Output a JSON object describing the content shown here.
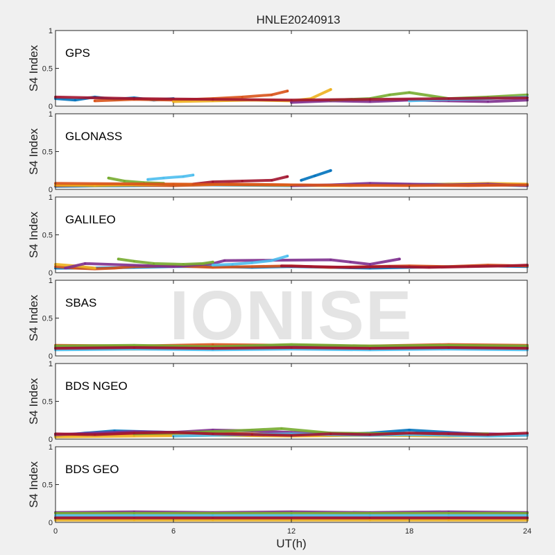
{
  "title": "HNLE20240913",
  "xlabel": "UT(h)",
  "watermark": "IONISE",
  "colors": {
    "background": "#f0f0f0",
    "axes_bg": "#ffffff",
    "palette": [
      "#0072bd",
      "#d95319",
      "#edb120",
      "#7e2f8e",
      "#77ac30",
      "#4dbeee",
      "#a2142f"
    ]
  },
  "chart_data": [
    {
      "type": "scatter",
      "panel_label": "GPS",
      "ylabel": "S4 Index",
      "xlim": [
        0,
        24
      ],
      "ylim": [
        0,
        1
      ],
      "yticks": [
        "0",
        "0.5",
        "1"
      ],
      "xticks": [],
      "series": [
        {
          "x": [
            0,
            1,
            2,
            3,
            4,
            5,
            6
          ],
          "y": [
            0.1,
            0.08,
            0.12,
            0.09,
            0.11,
            0.08,
            0.1
          ]
        },
        {
          "x": [
            2,
            4,
            6,
            8,
            9.5,
            11,
            11.8
          ],
          "y": [
            0.07,
            0.09,
            0.08,
            0.1,
            0.12,
            0.15,
            0.2
          ]
        },
        {
          "x": [
            6,
            8,
            10,
            12,
            13,
            14
          ],
          "y": [
            0.06,
            0.07,
            0.08,
            0.07,
            0.1,
            0.22
          ]
        },
        {
          "x": [
            12,
            14,
            16,
            18,
            20,
            22,
            24
          ],
          "y": [
            0.05,
            0.07,
            0.06,
            0.08,
            0.07,
            0.06,
            0.08
          ]
        },
        {
          "x": [
            14,
            16,
            17,
            18,
            20,
            22,
            24
          ],
          "y": [
            0.08,
            0.1,
            0.15,
            0.18,
            0.1,
            0.12,
            0.15
          ]
        },
        {
          "x": [
            18,
            20,
            22,
            24
          ],
          "y": [
            0.07,
            0.09,
            0.1,
            0.12
          ]
        },
        {
          "x": [
            0,
            4,
            8,
            12,
            16,
            20,
            24
          ],
          "y": [
            0.12,
            0.1,
            0.09,
            0.08,
            0.09,
            0.1,
            0.11
          ]
        }
      ]
    },
    {
      "type": "scatter",
      "panel_label": "GLONASS",
      "ylabel": "S4 Index",
      "xlim": [
        0,
        24
      ],
      "ylim": [
        0,
        1
      ],
      "yticks": [
        "0",
        "0.5",
        "1"
      ],
      "xticks": [],
      "series": [
        {
          "x": [
            0,
            4,
            8,
            12,
            16,
            20,
            24
          ],
          "y": [
            0.04,
            0.05,
            0.06,
            0.05,
            0.06,
            0.07,
            0.05
          ]
        },
        {
          "x": [
            0,
            3,
            6,
            9,
            12,
            15,
            18,
            21,
            24
          ],
          "y": [
            0.05,
            0.06,
            0.05,
            0.07,
            0.06,
            0.05,
            0.06,
            0.05,
            0.06
          ]
        },
        {
          "x": [
            0,
            2,
            6,
            10,
            14,
            18,
            22,
            24
          ],
          "y": [
            0.06,
            0.05,
            0.07,
            0.06,
            0.05,
            0.06,
            0.08,
            0.07
          ]
        },
        {
          "x": [
            12,
            14,
            16,
            18,
            20,
            22,
            24
          ],
          "y": [
            0.05,
            0.06,
            0.08,
            0.07,
            0.06,
            0.07,
            0.05
          ]
        },
        {
          "x": [
            2.7,
            3.5,
            4.5,
            5.5
          ],
          "y": [
            0.15,
            0.11,
            0.09,
            0.08
          ]
        },
        {
          "x": [
            4.7,
            5.5,
            6.5,
            7
          ],
          "y": [
            0.13,
            0.15,
            0.17,
            0.19
          ]
        },
        {
          "x": [
            7,
            8,
            9.5,
            11,
            11.8
          ],
          "y": [
            0.07,
            0.1,
            0.11,
            0.12,
            0.17
          ]
        },
        {
          "x": [
            12.5,
            13.2,
            14
          ],
          "y": [
            0.12,
            0.18,
            0.25
          ]
        },
        {
          "x": [
            0,
            6,
            12,
            18,
            24
          ],
          "y": [
            0.08,
            0.07,
            0.06,
            0.05,
            0.06
          ]
        }
      ]
    },
    {
      "type": "scatter",
      "panel_label": "GALILEO",
      "ylabel": "S4 Index",
      "xlim": [
        0,
        24
      ],
      "ylim": [
        0,
        1
      ],
      "yticks": [
        "0",
        "0.5",
        "1"
      ],
      "xticks": [],
      "series": [
        {
          "x": [
            0,
            2,
            4,
            6,
            8,
            10,
            12,
            14,
            16,
            18,
            20,
            22,
            24
          ],
          "y": [
            0.06,
            0.06,
            0.07,
            0.08,
            0.08,
            0.07,
            0.08,
            0.07,
            0.06,
            0.07,
            0.08,
            0.09,
            0.08
          ]
        },
        {
          "x": [
            0,
            1,
            2,
            3,
            4,
            6,
            8,
            10,
            12,
            14,
            16,
            18,
            20,
            22,
            24
          ],
          "y": [
            0.08,
            0.06,
            0.05,
            0.06,
            0.08,
            0.09,
            0.07,
            0.08,
            0.09,
            0.07,
            0.08,
            0.09,
            0.08,
            0.1,
            0.09
          ]
        },
        {
          "x": [
            0,
            1,
            2
          ],
          "y": [
            0.11,
            0.09,
            0.06
          ]
        },
        {
          "x": [
            0.5,
            1.5,
            6,
            8,
            8.6,
            14,
            15,
            16,
            17.5
          ],
          "y": [
            0.06,
            0.12,
            0.08,
            0.12,
            0.16,
            0.17,
            0.14,
            0.11,
            0.18
          ]
        },
        {
          "x": [
            3.2,
            4,
            5,
            6.5,
            7.5,
            8
          ],
          "y": [
            0.18,
            0.15,
            0.12,
            0.11,
            0.12,
            0.14
          ]
        },
        {
          "x": [
            8,
            9,
            10,
            11,
            11.8
          ],
          "y": [
            0.1,
            0.11,
            0.13,
            0.16,
            0.22
          ]
        },
        {
          "x": [
            11.5,
            13,
            15,
            17,
            19,
            21,
            23,
            24
          ],
          "y": [
            0.09,
            0.08,
            0.07,
            0.08,
            0.07,
            0.08,
            0.09,
            0.1
          ]
        }
      ]
    },
    {
      "type": "scatter",
      "panel_label": "SBAS",
      "ylabel": "S4 Index",
      "xlim": [
        0,
        24
      ],
      "ylim": [
        0,
        1
      ],
      "yticks": [
        "0",
        "0.5",
        "1"
      ],
      "xticks": [],
      "series": [
        {
          "x": [
            0,
            4,
            8,
            12,
            16,
            20,
            24
          ],
          "y": [
            0.11,
            0.12,
            0.1,
            0.13,
            0.11,
            0.12,
            0.11
          ]
        },
        {
          "x": [
            0,
            4,
            8,
            12,
            16,
            20,
            24
          ],
          "y": [
            0.14,
            0.13,
            0.15,
            0.14,
            0.13,
            0.15,
            0.14
          ]
        },
        {
          "x": [
            0,
            4,
            8,
            12,
            16,
            20,
            24
          ],
          "y": [
            0.1,
            0.09,
            0.11,
            0.1,
            0.12,
            0.1,
            0.11
          ]
        },
        {
          "x": [
            0,
            4,
            8,
            12,
            16,
            20,
            24
          ],
          "y": [
            0.12,
            0.11,
            0.12,
            0.13,
            0.12,
            0.11,
            0.12
          ]
        },
        {
          "x": [
            0,
            4,
            8,
            12,
            16,
            20,
            24
          ],
          "y": [
            0.13,
            0.14,
            0.12,
            0.15,
            0.13,
            0.14,
            0.13
          ]
        },
        {
          "x": [
            0,
            4,
            8,
            12,
            16,
            20,
            24
          ],
          "y": [
            0.08,
            0.09,
            0.08,
            0.09,
            0.08,
            0.09,
            0.08
          ]
        },
        {
          "x": [
            0,
            4,
            8,
            12,
            16,
            20,
            24
          ],
          "y": [
            0.1,
            0.11,
            0.1,
            0.11,
            0.1,
            0.11,
            0.1
          ]
        }
      ]
    },
    {
      "type": "scatter",
      "panel_label": "BDS NGEO",
      "ylabel": "S4 Index",
      "xlim": [
        0,
        24
      ],
      "ylim": [
        0,
        1
      ],
      "yticks": [
        "0",
        "0.5",
        "1"
      ],
      "xticks": [],
      "series": [
        {
          "x": [
            0,
            1.5,
            3,
            6,
            10,
            14,
            16,
            18,
            20,
            22,
            24
          ],
          "y": [
            0.04,
            0.08,
            0.11,
            0.09,
            0.07,
            0.06,
            0.08,
            0.12,
            0.09,
            0.06,
            0.05
          ]
        },
        {
          "x": [
            0,
            2,
            4,
            6,
            8,
            10,
            12,
            14,
            16,
            18,
            20,
            22,
            24
          ],
          "y": [
            0.05,
            0.06,
            0.07,
            0.06,
            0.08,
            0.07,
            0.06,
            0.05,
            0.07,
            0.06,
            0.05,
            0.06,
            0.05
          ]
        },
        {
          "x": [
            0,
            4,
            8,
            12,
            16,
            20,
            24
          ],
          "y": [
            0.03,
            0.04,
            0.05,
            0.04,
            0.05,
            0.04,
            0.05
          ]
        },
        {
          "x": [
            0,
            2,
            4,
            6,
            8,
            10,
            12,
            16,
            20,
            24
          ],
          "y": [
            0.06,
            0.08,
            0.1,
            0.09,
            0.12,
            0.11,
            0.09,
            0.07,
            0.08,
            0.06
          ]
        },
        {
          "x": [
            4,
            6,
            8,
            10,
            11.5,
            14,
            18,
            20,
            22
          ],
          "y": [
            0.07,
            0.08,
            0.1,
            0.12,
            0.14,
            0.08,
            0.07,
            0.06,
            0.07
          ]
        },
        {
          "x": [
            6,
            8,
            10,
            12,
            14,
            16,
            18,
            20,
            22,
            24
          ],
          "y": [
            0.04,
            0.05,
            0.06,
            0.07,
            0.06,
            0.05,
            0.06,
            0.05,
            0.04,
            0.05
          ]
        },
        {
          "x": [
            0,
            2,
            4,
            6,
            8,
            10,
            12,
            14,
            16,
            18,
            20,
            22,
            24
          ],
          "y": [
            0.07,
            0.06,
            0.08,
            0.09,
            0.07,
            0.06,
            0.05,
            0.07,
            0.06,
            0.08,
            0.07,
            0.06,
            0.08
          ]
        }
      ]
    },
    {
      "type": "scatter",
      "panel_label": "BDS GEO",
      "ylabel": "S4 Index",
      "xlim": [
        0,
        24
      ],
      "ylim": [
        0,
        1
      ],
      "yticks": [
        "0",
        "0.5",
        "1"
      ],
      "xticks": [
        "0",
        "6",
        "12",
        "18",
        "24"
      ],
      "series": [
        {
          "x": [
            0,
            4,
            8,
            12,
            16,
            20,
            24
          ],
          "y": [
            0.05,
            0.05,
            0.05,
            0.05,
            0.05,
            0.05,
            0.05
          ]
        },
        {
          "x": [
            0,
            4,
            8,
            12,
            16,
            20,
            24
          ],
          "y": [
            0.07,
            0.07,
            0.07,
            0.07,
            0.07,
            0.07,
            0.07
          ]
        },
        {
          "x": [
            0,
            4,
            8,
            12,
            16,
            20,
            24
          ],
          "y": [
            0.03,
            0.03,
            0.03,
            0.03,
            0.03,
            0.03,
            0.03
          ]
        },
        {
          "x": [
            0,
            4,
            8,
            12,
            16,
            20,
            24
          ],
          "y": [
            0.13,
            0.14,
            0.13,
            0.14,
            0.13,
            0.14,
            0.13
          ]
        },
        {
          "x": [
            0,
            4,
            8,
            12,
            16,
            20,
            24
          ],
          "y": [
            0.12,
            0.12,
            0.12,
            0.12,
            0.12,
            0.12,
            0.12
          ]
        },
        {
          "x": [
            0,
            4,
            8,
            12,
            16,
            20,
            24
          ],
          "y": [
            0.09,
            0.09,
            0.09,
            0.09,
            0.09,
            0.09,
            0.09
          ]
        },
        {
          "x": [
            0,
            4,
            8,
            12,
            16,
            20,
            24
          ],
          "y": [
            0.06,
            0.06,
            0.06,
            0.06,
            0.06,
            0.06,
            0.06
          ]
        }
      ]
    }
  ]
}
